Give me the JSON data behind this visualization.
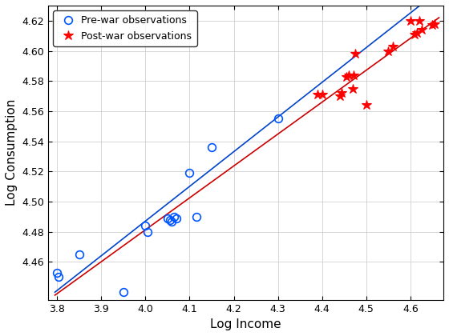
{
  "prewar_x": [
    3.8,
    3.803,
    3.85,
    3.95,
    4.0,
    4.005,
    4.05,
    4.055,
    4.06,
    4.065,
    4.07,
    4.1,
    4.115,
    4.15,
    4.3
  ],
  "prewar_y": [
    4.453,
    4.45,
    4.465,
    4.44,
    4.484,
    4.48,
    4.489,
    4.488,
    4.487,
    4.49,
    4.489,
    4.519,
    4.49,
    4.536,
    4.555
  ],
  "postwar_x": [
    4.39,
    4.4,
    4.44,
    4.445,
    4.455,
    4.46,
    4.47,
    4.472,
    4.475,
    4.5,
    4.55,
    4.56,
    4.6,
    4.61,
    4.615,
    4.62,
    4.625,
    4.65,
    4.655
  ],
  "postwar_y": [
    4.571,
    4.571,
    4.57,
    4.572,
    4.583,
    4.584,
    4.575,
    4.584,
    4.598,
    4.564,
    4.6,
    4.603,
    4.62,
    4.611,
    4.612,
    4.62,
    4.614,
    4.617,
    4.618
  ],
  "blue_line_x": [
    3.795,
    4.665
  ],
  "blue_line_y": [
    4.44,
    4.64
  ],
  "red_line_x": [
    3.795,
    4.665
  ],
  "red_line_y": [
    4.438,
    4.622
  ],
  "xlabel": "Log Income",
  "ylabel": "Log Consumption",
  "xlim": [
    3.78,
    4.675
  ],
  "ylim": [
    4.435,
    4.63
  ],
  "xticks": [
    3.8,
    3.9,
    4.0,
    4.1,
    4.2,
    4.3,
    4.4,
    4.5,
    4.6
  ],
  "yticks": [
    4.46,
    4.48,
    4.5,
    4.52,
    4.54,
    4.56,
    4.58,
    4.6,
    4.62
  ],
  "prewar_color": "#0055ff",
  "postwar_color": "#ff0000",
  "blue_line_color": "#0044cc",
  "red_line_color": "#cc0000",
  "legend_prewar": "Pre-war observations",
  "legend_postwar": "Post-war observations"
}
